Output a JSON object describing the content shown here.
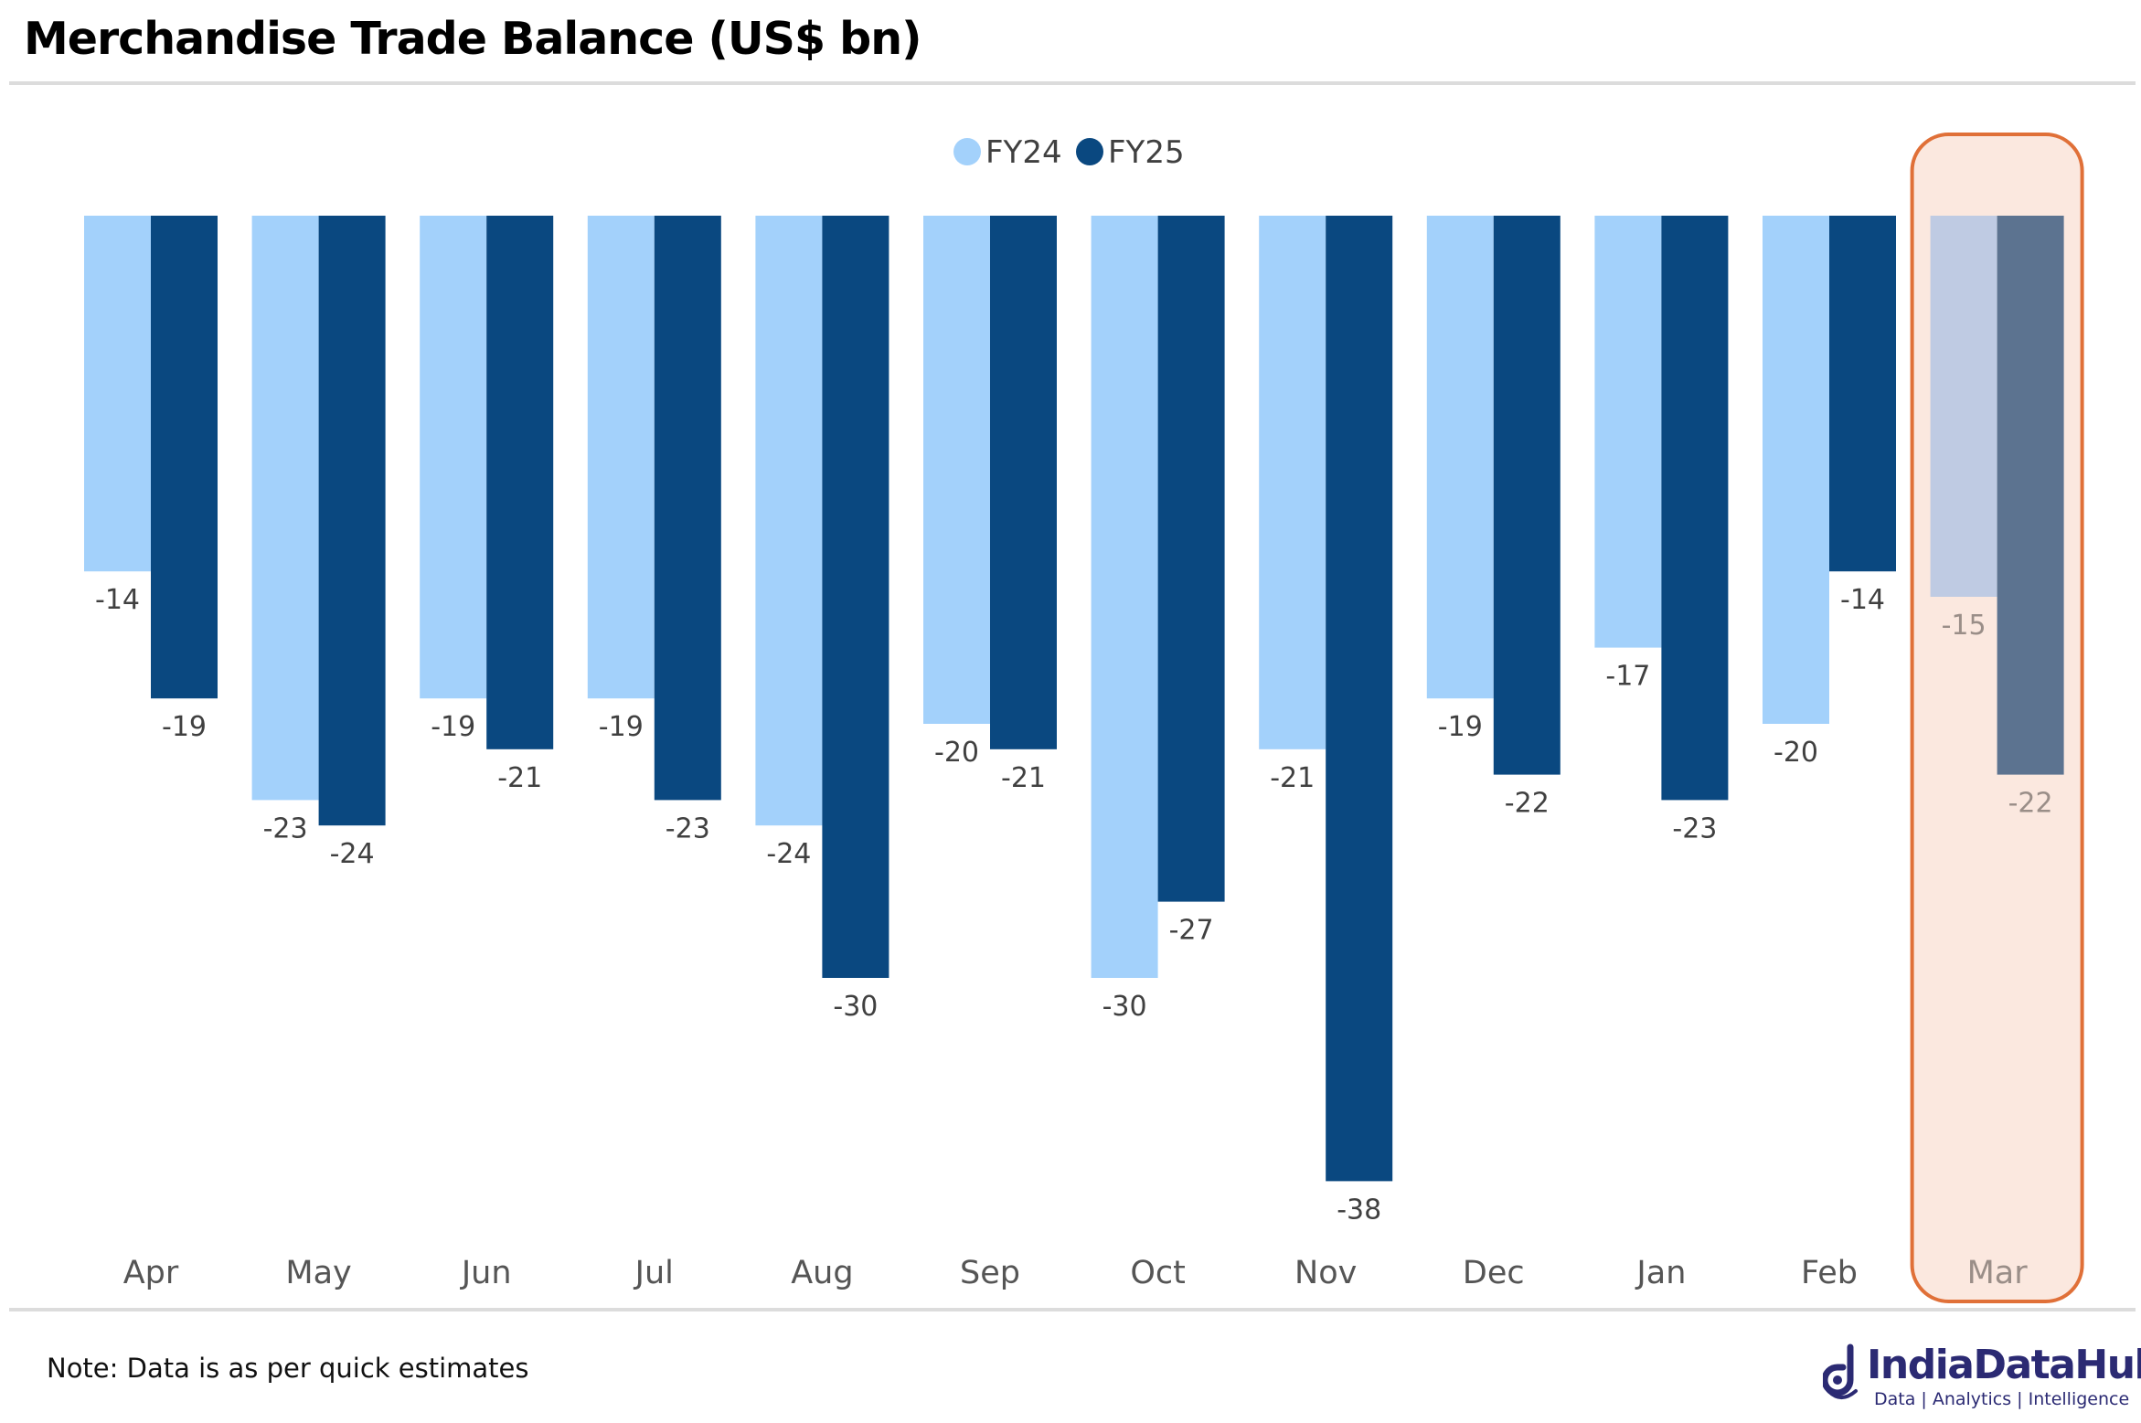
{
  "title": "Merchandise Trade Balance (US$ bn)",
  "note": "Note: Data is as per quick estimates",
  "brand": {
    "name": "IndiaDataHub",
    "tagline": "Data | Analytics | Intelligence"
  },
  "colors": {
    "fy24": "#a3d1fb",
    "fy25": "#0a4880",
    "fy24_muted": "#bfcbe3",
    "fy25_muted": "#5c7390",
    "highlight_fill": "#fbe8df",
    "highlight_border": "#e07038",
    "label_text": "#404040",
    "label_muted": "#9a8e88",
    "brand": "#2b2a73"
  },
  "chart_data": {
    "type": "bar",
    "orientation": "vertical",
    "title": "Merchandise Trade Balance (US$ bn)",
    "categories": [
      "Apr",
      "May",
      "Jun",
      "Jul",
      "Aug",
      "Sep",
      "Oct",
      "Nov",
      "Dec",
      "Jan",
      "Feb",
      "Mar"
    ],
    "series": [
      {
        "name": "FY24",
        "values": [
          -14,
          -23,
          -19,
          -19,
          -24,
          -20,
          -30,
          -21,
          -19,
          -17,
          -20,
          -15
        ]
      },
      {
        "name": "FY25",
        "values": [
          -19,
          -24,
          -21,
          -23,
          -30,
          -21,
          -27,
          -38,
          -22,
          -23,
          -14,
          -22
        ]
      }
    ],
    "ylim": [
      -38,
      0
    ],
    "grid": false,
    "legend": "top-center",
    "highlighted_category": "Mar",
    "data_labels": true
  }
}
